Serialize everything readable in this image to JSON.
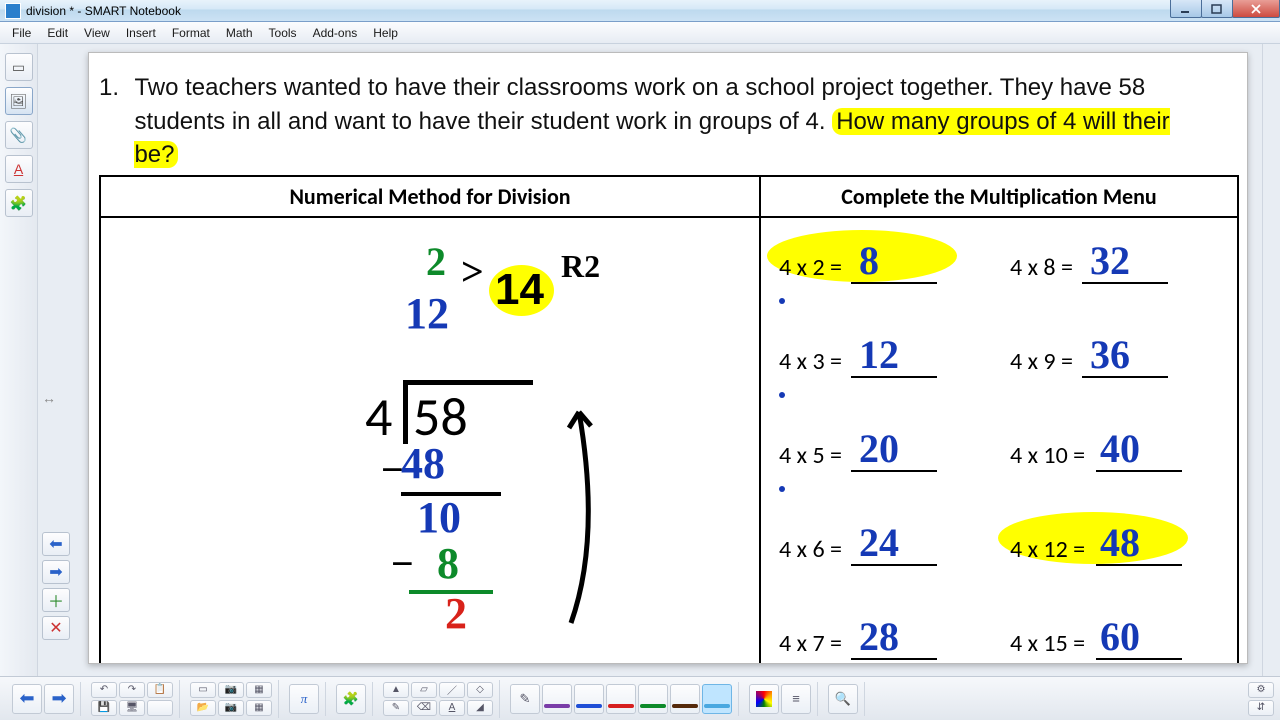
{
  "window": {
    "title": "division * - SMART Notebook"
  },
  "menu": [
    "File",
    "Edit",
    "View",
    "Insert",
    "Format",
    "Math",
    "Tools",
    "Add-ons",
    "Help"
  ],
  "problem": {
    "number": "1.",
    "text_pre": "Two teachers wanted to have their classrooms work on a school project together. They have 58 students in all and want to have their student work in groups of 4. ",
    "highlight": "How many groups of 4 will their be?"
  },
  "headers": {
    "left": "Numerical Method for Division",
    "right": "Complete the Multiplication Menu"
  },
  "longdiv": {
    "divisor": "4",
    "dividend": "58",
    "quotient_top_green": "2",
    "quotient_12": "12",
    "compare": ">",
    "compare_val": "14",
    "remainder_label": "R2",
    "sub_48": "48",
    "after_sub1": "10",
    "sub_8": "8",
    "after_sub2": "2"
  },
  "mult": {
    "rows": [
      {
        "label": "4 x 2 =",
        "ans": "8",
        "hl": true,
        "dot": true
      },
      {
        "label": "4 x 8 =",
        "ans": "32",
        "hl": false,
        "dot": false
      },
      {
        "label": "4 x 3 =",
        "ans": "12",
        "hl": false,
        "dot": true
      },
      {
        "label": "4 x 9 =",
        "ans": "36",
        "hl": false,
        "dot": false
      },
      {
        "label": "4 x 5 =",
        "ans": "20",
        "hl": false,
        "dot": true
      },
      {
        "label": "4 x 10 =",
        "ans": "40",
        "hl": false,
        "dot": false,
        "wide": true
      },
      {
        "label": "4 x 6 =",
        "ans": "24",
        "hl": false,
        "dot": false
      },
      {
        "label": "4 x 12 =",
        "ans": "48",
        "hl": true,
        "dot": false,
        "wide": true
      },
      {
        "label": "4 x 7 =",
        "ans": "28",
        "hl": false,
        "dot": false
      },
      {
        "label": "4 x 15 =",
        "ans": "60",
        "hl": false,
        "dot": false,
        "wide": true
      }
    ]
  },
  "colors": {
    "highlight": "#ffff00",
    "blue_ink": "#1539b5",
    "green_ink": "#0d8a2a",
    "red_ink": "#d8221a",
    "black_ink": "#000000",
    "page_bg": "#ffffff"
  },
  "pen_colors": [
    "#7a3da8",
    "#1f4fd6",
    "#d61f1f",
    "#0d8a2a",
    "#552a0b",
    "#4aa8e0"
  ]
}
